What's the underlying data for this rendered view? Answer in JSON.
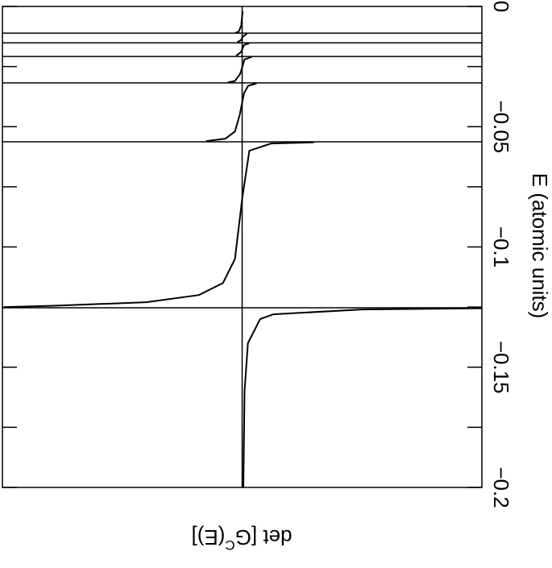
{
  "chart_data": {
    "type": "line",
    "x_label": "E (atomic units)",
    "y_label": [
      "det [G",
      "C",
      "(E)]"
    ],
    "xlim": [
      0,
      -0.2
    ],
    "xticks": [
      {
        "value": 0,
        "label": "0"
      },
      {
        "value": -0.05,
        "label": "−0.05"
      },
      {
        "value": -0.1,
        "label": "−0.1"
      },
      {
        "value": -0.15,
        "label": "−0.15"
      },
      {
        "value": -0.2,
        "label": "−0.2"
      }
    ],
    "xminor": [
      -0.025,
      -0.075,
      -0.125,
      -0.175
    ],
    "ylim": [
      -1,
      1
    ],
    "zero_line": true,
    "poles": [
      -0.0111,
      -0.0151,
      -0.0208,
      -0.0318,
      -0.0563,
      -0.1253
    ],
    "series": [
      {
        "color": "#000000",
        "x": [
          -0.002,
          -0.008,
          -0.0106,
          -0.011,
          null,
          -0.0113,
          -0.0125,
          -0.014,
          -0.0149,
          null,
          -0.0153,
          -0.016,
          -0.019,
          -0.0205,
          null,
          -0.021,
          -0.022,
          -0.028,
          -0.031,
          -0.0316,
          null,
          -0.032,
          -0.033,
          -0.036,
          -0.045,
          -0.052,
          -0.055,
          -0.056,
          null,
          -0.0565,
          -0.057,
          -0.06,
          -0.08,
          -0.105,
          -0.115,
          -0.12,
          -0.123,
          -0.1245,
          -0.125,
          null,
          -0.1255,
          -0.126,
          -0.128,
          -0.13,
          -0.14,
          -0.16,
          -0.2
        ],
        "values": [
          0.002,
          -0.004,
          -0.015,
          -0.03,
          null,
          0.02,
          0.004,
          -0.005,
          -0.02,
          null,
          0.03,
          0.008,
          -0.005,
          -0.025,
          null,
          0.04,
          0.01,
          -0.008,
          -0.03,
          -0.06,
          null,
          0.06,
          0.025,
          0.008,
          -0.01,
          -0.03,
          -0.07,
          -0.15,
          null,
          0.3,
          0.12,
          0.03,
          0.0,
          -0.03,
          -0.08,
          -0.18,
          -0.4,
          -0.8,
          -0.99,
          null,
          1.0,
          0.5,
          0.13,
          0.075,
          0.024,
          0.01,
          0.005
        ]
      }
    ]
  }
}
